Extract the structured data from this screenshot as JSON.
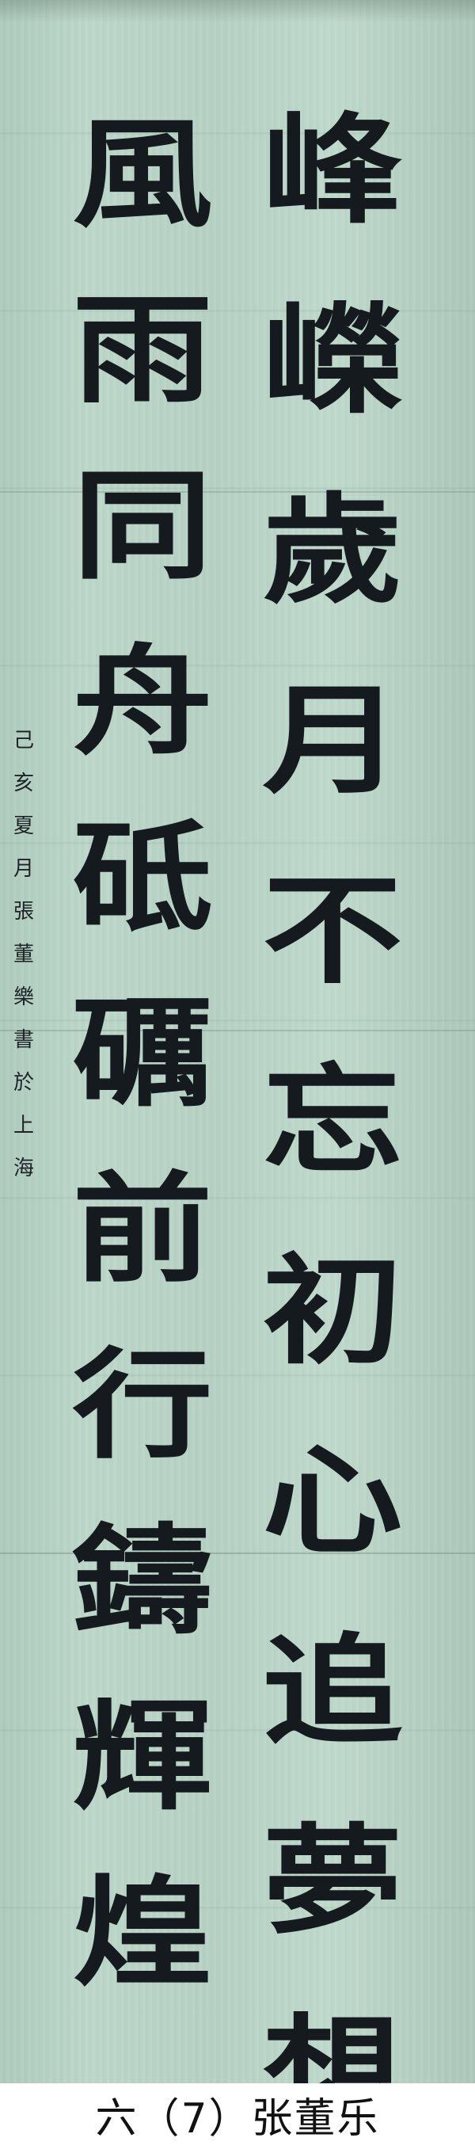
{
  "scroll": {
    "right_column": [
      "峰",
      "嶸",
      "歲",
      "月",
      "不",
      "忘",
      "初",
      "心",
      "追",
      "夢",
      "想"
    ],
    "left_column": [
      "風",
      "雨",
      "同",
      "舟",
      "砥",
      "礪",
      "前",
      "行",
      "鑄",
      "輝",
      "煌"
    ],
    "inscription": [
      "己",
      "亥",
      "夏",
      "月",
      "張",
      "董",
      "樂",
      "書",
      "於",
      "上",
      "海"
    ]
  },
  "caption": "六（7）张董乐"
}
